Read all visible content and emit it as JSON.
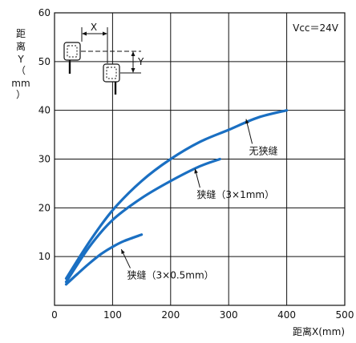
{
  "chart_data": {
    "type": "line",
    "xlabel": "距离X(mm)",
    "ylabel_lines": [
      "距",
      "离",
      "Y",
      "（",
      "mm",
      "）"
    ],
    "xlim": [
      0,
      500
    ],
    "ylim": [
      0,
      60
    ],
    "xticks": [
      0,
      100,
      200,
      300,
      400,
      500
    ],
    "yticks": [
      10,
      20,
      30,
      40,
      50,
      60
    ],
    "grid": true,
    "annotation": "Vcc＝24V",
    "series": [
      {
        "name": "无狭缝",
        "color": "#1a6fc2",
        "points": [
          [
            20,
            5.5
          ],
          [
            60,
            13
          ],
          [
            100,
            19.5
          ],
          [
            150,
            25.5
          ],
          [
            200,
            30
          ],
          [
            250,
            33.5
          ],
          [
            300,
            36
          ],
          [
            350,
            38.5
          ],
          [
            400,
            40
          ]
        ]
      },
      {
        "name": "狭缝（3×1mm）",
        "color": "#1a6fc2",
        "points": [
          [
            20,
            4.8
          ],
          [
            60,
            12
          ],
          [
            100,
            17.5
          ],
          [
            150,
            22
          ],
          [
            200,
            25.5
          ],
          [
            250,
            28.5
          ],
          [
            285,
            30
          ]
        ]
      },
      {
        "name": "狭缝（3×0.5mm）",
        "color": "#1a6fc2",
        "points": [
          [
            20,
            4.3
          ],
          [
            40,
            6.5
          ],
          [
            60,
            8.6
          ],
          [
            80,
            10.5
          ],
          [
            100,
            12
          ],
          [
            120,
            13.2
          ],
          [
            150,
            14.5
          ]
        ]
      }
    ],
    "labels": [
      {
        "series": 0,
        "text": "无狭缝",
        "at": [
          335,
          31
        ],
        "arrow_to": [
          330,
          38.2
        ]
      },
      {
        "series": 1,
        "text": "狭缝（3×1mm）",
        "at": [
          245,
          22
        ],
        "arrow_to": [
          242,
          28
        ]
      },
      {
        "series": 2,
        "text": "狭缝（3×0.5mm）",
        "at": [
          125,
          5.5
        ],
        "arrow_to": [
          115,
          11.5
        ]
      }
    ],
    "inset": {
      "x_label": "X",
      "y_label": "Y"
    }
  }
}
